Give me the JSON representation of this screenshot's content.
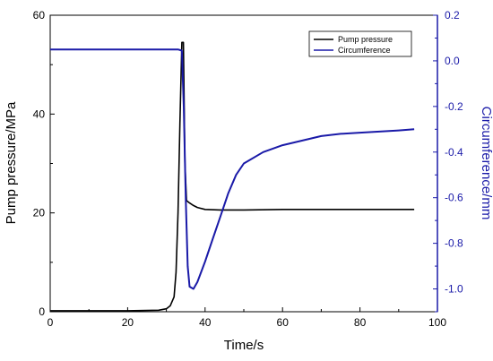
{
  "chart_data": {
    "type": "line",
    "x_axis": {
      "label": "Time/s",
      "range": [
        0,
        100
      ],
      "ticks": [
        0,
        20,
        40,
        60,
        80,
        100
      ]
    },
    "y_left": {
      "label": "Pump pressure/MPa",
      "range": [
        0,
        60
      ],
      "ticks": [
        0,
        20,
        40,
        60
      ]
    },
    "y_right": {
      "label": "Circumference/mm",
      "range": [
        -1.1,
        0.2
      ],
      "ticks": [
        0.2,
        0.0,
        -0.2,
        -0.4,
        -0.6,
        -0.8,
        -1.0
      ],
      "tick_labels": [
        "0.2",
        "0.0",
        "-0.2",
        "-0.4",
        "-0.6",
        "-0.8",
        "-1.0"
      ],
      "color": "#1a1aa8"
    },
    "legend": {
      "position": "top-right"
    },
    "series": [
      {
        "name": "Pump pressure",
        "axis": "left",
        "color": "#000000",
        "points": [
          [
            0,
            0.2
          ],
          [
            10,
            0.2
          ],
          [
            20,
            0.2
          ],
          [
            28,
            0.3
          ],
          [
            30,
            0.6
          ],
          [
            31,
            1.2
          ],
          [
            32,
            3
          ],
          [
            32.5,
            8
          ],
          [
            33,
            20
          ],
          [
            33.5,
            38
          ],
          [
            34,
            54.5
          ],
          [
            34.4,
            54.5
          ],
          [
            34.8,
            30
          ],
          [
            35.2,
            22.5
          ],
          [
            36,
            22
          ],
          [
            37,
            21.5
          ],
          [
            38,
            21.1
          ],
          [
            40,
            20.7
          ],
          [
            44,
            20.6
          ],
          [
            50,
            20.6
          ],
          [
            60,
            20.7
          ],
          [
            70,
            20.7
          ],
          [
            80,
            20.7
          ],
          [
            94,
            20.7
          ]
        ]
      },
      {
        "name": "Circumference",
        "axis": "right",
        "color": "#1a1aa8",
        "points": [
          [
            0,
            0.05
          ],
          [
            10,
            0.05
          ],
          [
            20,
            0.05
          ],
          [
            30,
            0.05
          ],
          [
            33,
            0.05
          ],
          [
            34,
            0.045
          ],
          [
            34.5,
            -0.2
          ],
          [
            35,
            -0.6
          ],
          [
            35.5,
            -0.9
          ],
          [
            36,
            -0.99
          ],
          [
            37,
            -1.0
          ],
          [
            38,
            -0.97
          ],
          [
            40,
            -0.88
          ],
          [
            42,
            -0.78
          ],
          [
            44,
            -0.68
          ],
          [
            46,
            -0.58
          ],
          [
            48,
            -0.5
          ],
          [
            50,
            -0.45
          ],
          [
            55,
            -0.4
          ],
          [
            60,
            -0.37
          ],
          [
            65,
            -0.35
          ],
          [
            70,
            -0.33
          ],
          [
            75,
            -0.32
          ],
          [
            80,
            -0.315
          ],
          [
            85,
            -0.31
          ],
          [
            90,
            -0.305
          ],
          [
            94,
            -0.3
          ]
        ]
      }
    ]
  }
}
